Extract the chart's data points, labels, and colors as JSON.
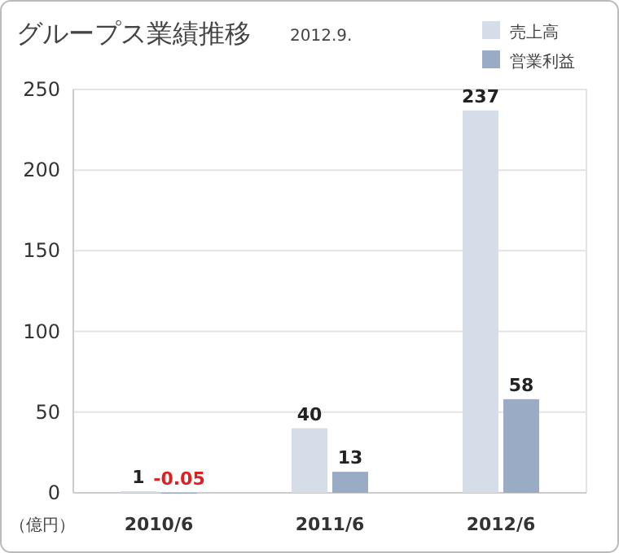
{
  "chart_data": {
    "type": "bar",
    "title": "グループス業績推移",
    "subtitle": "2012.9.",
    "ylabel": "（億円）",
    "categories": [
      "2010/6",
      "2011/6",
      "2012/6"
    ],
    "series": [
      {
        "name": "売上高",
        "color": "#d5dde8",
        "values": [
          1,
          40,
          237
        ]
      },
      {
        "name": "営業利益",
        "color": "#9aabc6",
        "values": [
          -0.05,
          13,
          58
        ]
      }
    ],
    "ylim": [
      -0.05,
      250
    ],
    "yticks": [
      0,
      50,
      100,
      150,
      200,
      250
    ],
    "grid": "y",
    "legend": "top right",
    "data_labels": true
  }
}
